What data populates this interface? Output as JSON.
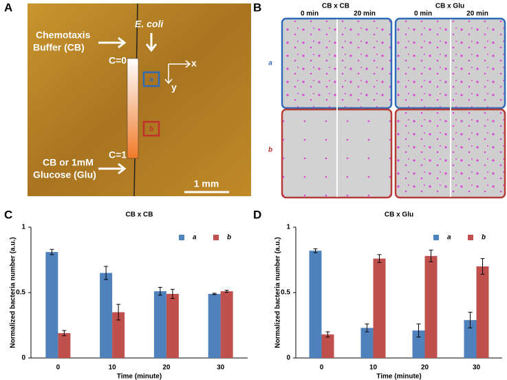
{
  "panel_labels": [
    "A",
    "B",
    "C",
    "D"
  ],
  "panel_a": {
    "buffer_label": [
      "Chemotaxis",
      "Buffer (CB)"
    ],
    "ecoli": "E. coli",
    "x_axis": "x",
    "y_axis": "y",
    "c0": "C=0",
    "c1": "C=1",
    "region_a": "a",
    "region_b": "b",
    "glucose_label": [
      "CB or 1mM",
      "Glucose (Glu)"
    ],
    "scale_bar": "1 mm"
  },
  "panel_b": {
    "columns": [
      "CB x CB",
      "CB x Glu"
    ],
    "times": [
      "0 min",
      "20 min",
      "0 min",
      "20 min"
    ],
    "rows": [
      "a",
      "b"
    ]
  },
  "chart_data": [
    {
      "type": "bar",
      "title": "CB x CB",
      "x_label": "Time (minute)",
      "y_label": "Normalized bacteria number (a.u.)",
      "categories": [
        "0",
        "10",
        "20",
        "30"
      ],
      "ylim": [
        0,
        1
      ],
      "yticks": [
        0,
        0.5,
        1
      ],
      "legend": "upper right",
      "series": [
        {
          "name": "a",
          "color": "#4f81bd",
          "values": [
            0.81,
            0.65,
            0.51,
            0.49
          ],
          "errors": [
            0.02,
            0.05,
            0.03,
            0.005
          ]
        },
        {
          "name": "b",
          "color": "#c0504d",
          "values": [
            0.19,
            0.35,
            0.49,
            0.51
          ],
          "errors": [
            0.02,
            0.06,
            0.035,
            0.008
          ]
        }
      ]
    },
    {
      "type": "bar",
      "title": "CB x Glu",
      "x_label": "Time (minute)",
      "y_label": "Normalized bacteria number (a.u.)",
      "categories": [
        "0",
        "10",
        "20",
        "30"
      ],
      "ylim": [
        0,
        1
      ],
      "yticks": [
        0,
        0.5,
        1
      ],
      "legend": "upper right",
      "series": [
        {
          "name": "a",
          "color": "#4f81bd",
          "values": [
            0.82,
            0.23,
            0.21,
            0.29
          ],
          "errors": [
            0.015,
            0.03,
            0.05,
            0.06
          ]
        },
        {
          "name": "b",
          "color": "#c0504d",
          "values": [
            0.18,
            0.76,
            0.78,
            0.7
          ],
          "errors": [
            0.02,
            0.03,
            0.045,
            0.06
          ]
        }
      ]
    }
  ]
}
